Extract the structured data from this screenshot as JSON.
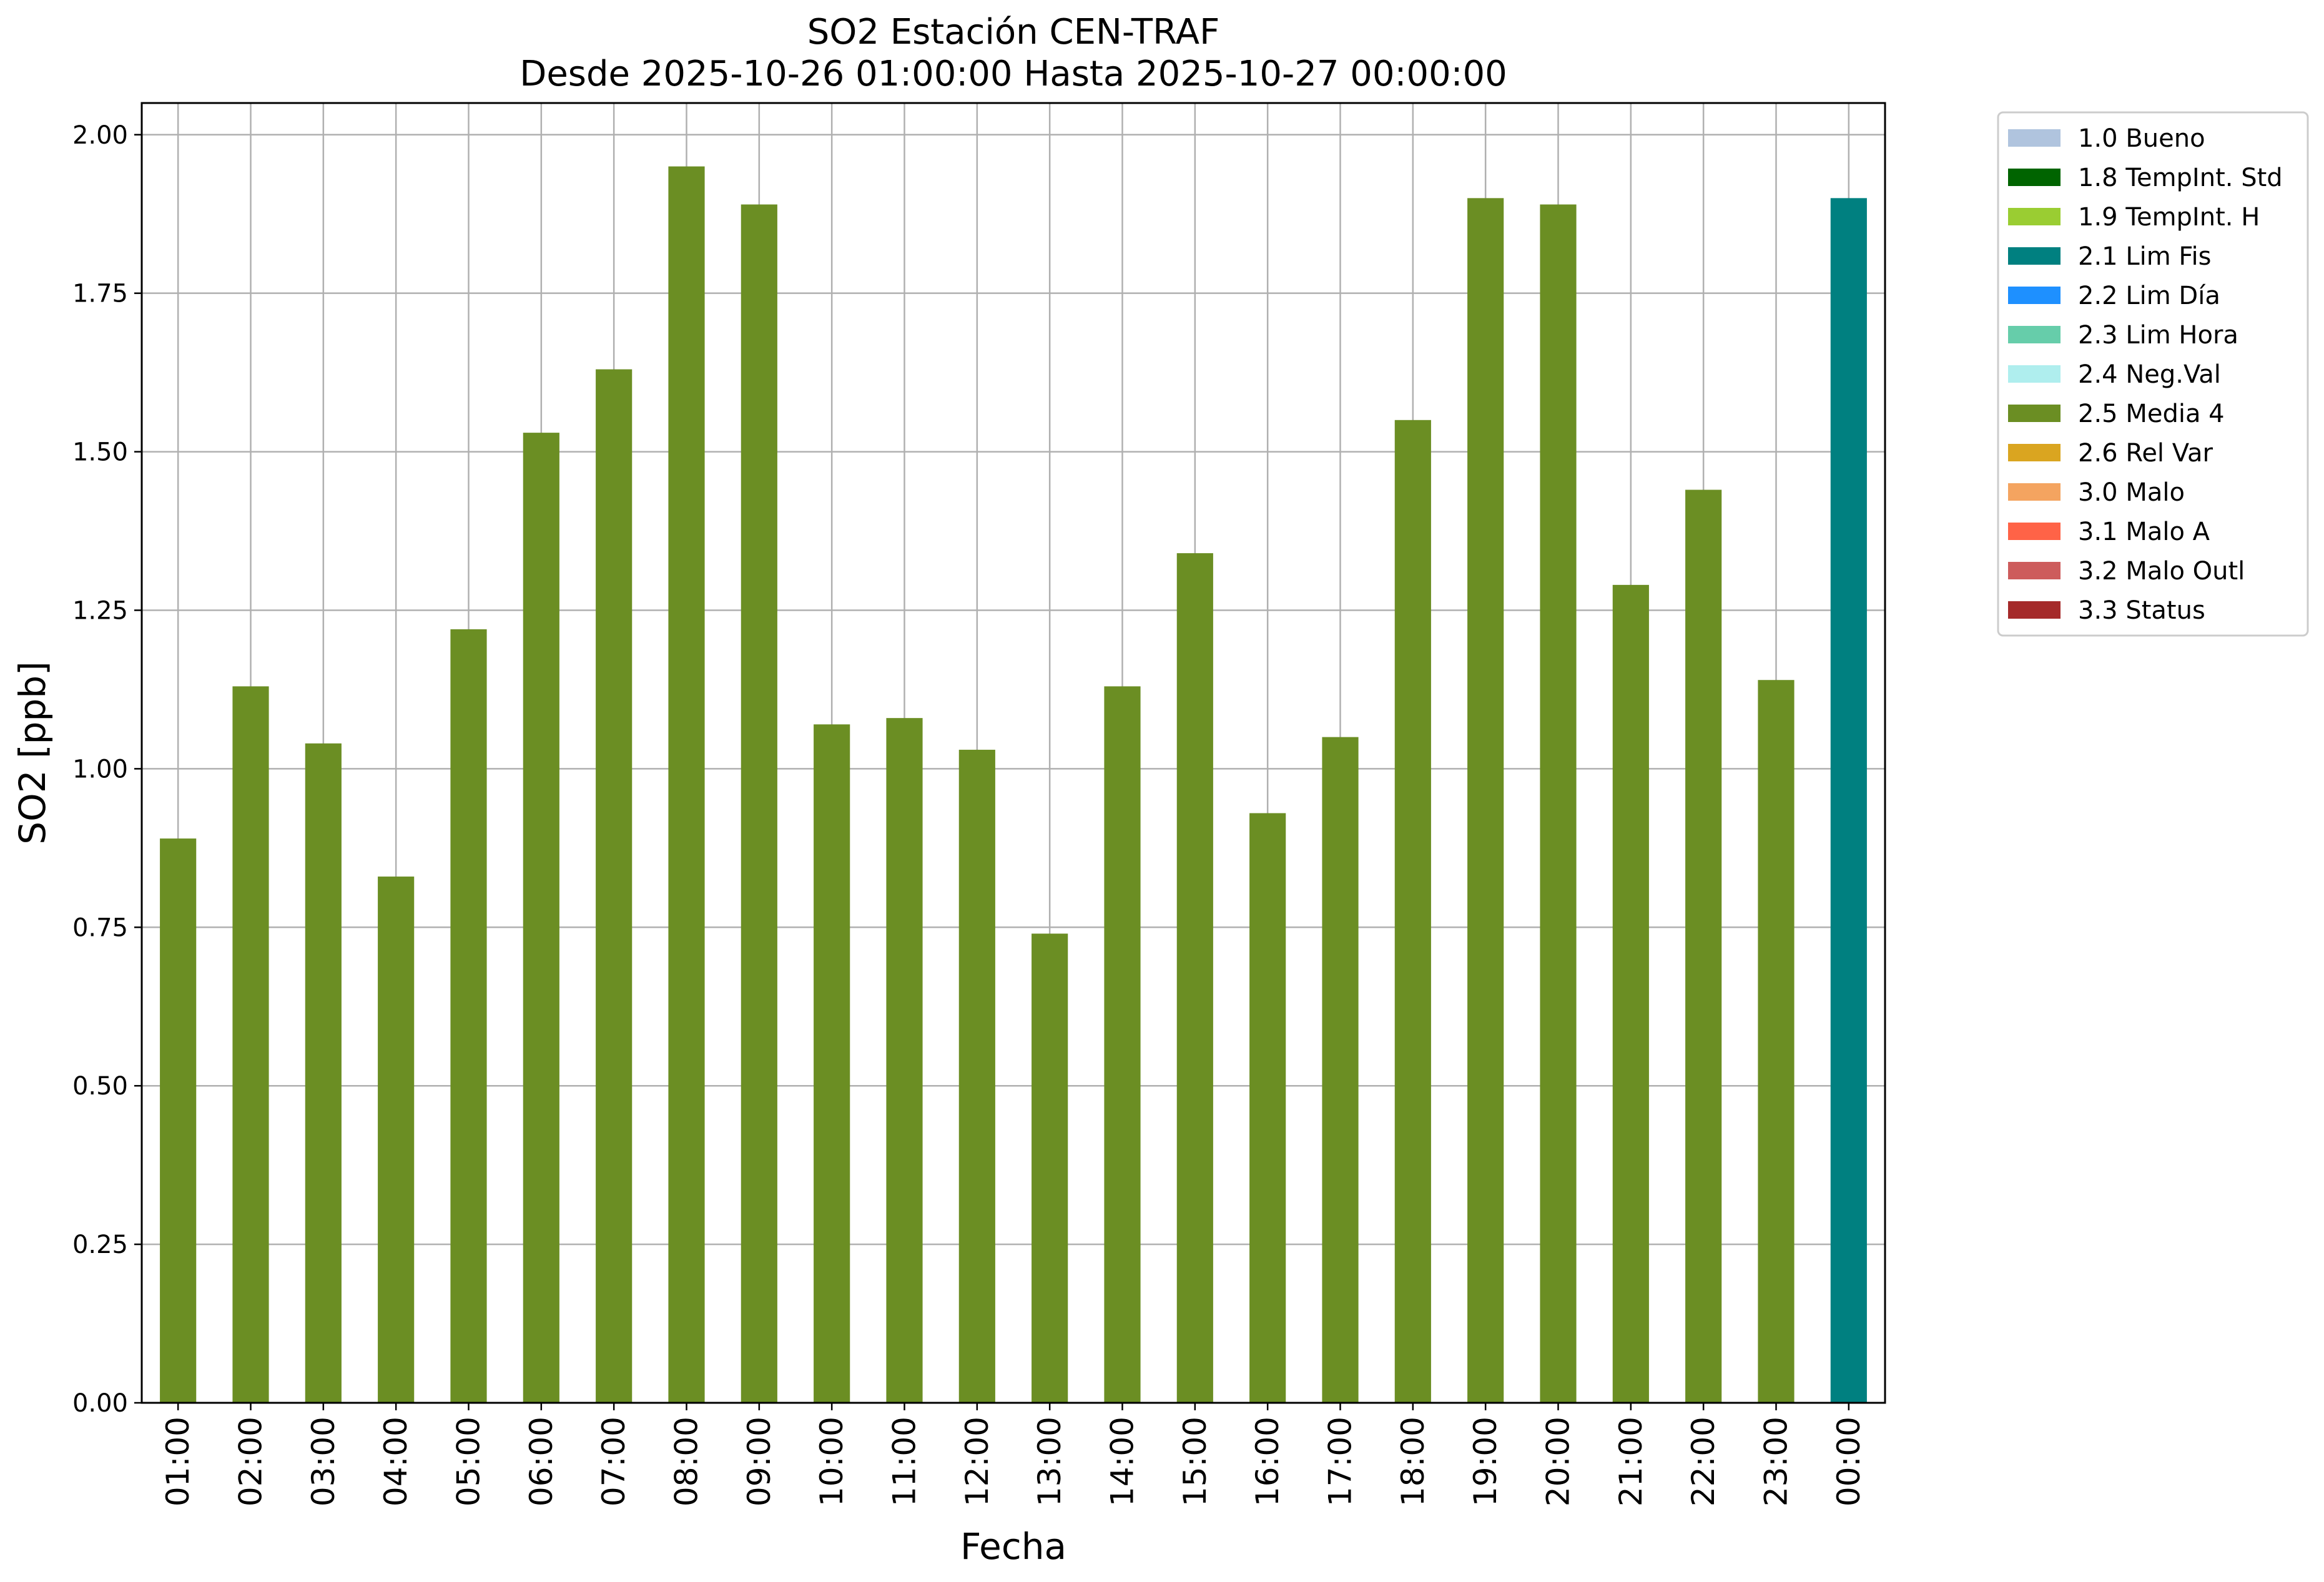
{
  "chart_data": {
    "type": "bar",
    "title": "SO2 Estación CEN-TRAF",
    "subtitle": "Desde 2025-10-26 01:00:00 Hasta 2025-10-27 00:00:00",
    "xlabel": "Fecha",
    "ylabel": "SO2 [ppb]",
    "ylim": [
      0,
      2.05
    ],
    "yticks": [
      "0.00",
      "0.25",
      "0.50",
      "0.75",
      "1.00",
      "1.25",
      "1.50",
      "1.75",
      "2.00"
    ],
    "grid": true,
    "legend_position": "outside-top-right",
    "categories": [
      "01:00",
      "02:00",
      "03:00",
      "04:00",
      "05:00",
      "06:00",
      "07:00",
      "08:00",
      "09:00",
      "10:00",
      "11:00",
      "12:00",
      "13:00",
      "14:00",
      "15:00",
      "16:00",
      "17:00",
      "18:00",
      "19:00",
      "20:00",
      "21:00",
      "22:00",
      "23:00",
      "00:00"
    ],
    "values": [
      0.89,
      1.13,
      1.04,
      0.83,
      1.22,
      1.53,
      1.63,
      1.95,
      1.89,
      1.07,
      1.08,
      1.03,
      0.74,
      1.13,
      1.34,
      0.93,
      1.05,
      1.55,
      1.9,
      1.89,
      1.29,
      1.44,
      1.14,
      1.9
    ],
    "flags": [
      "2.5 Media 4",
      "2.5 Media 4",
      "2.5 Media 4",
      "2.5 Media 4",
      "2.5 Media 4",
      "2.5 Media 4",
      "2.5 Media 4",
      "2.5 Media 4",
      "2.5 Media 4",
      "2.5 Media 4",
      "2.5 Media 4",
      "2.5 Media 4",
      "2.5 Media 4",
      "2.5 Media 4",
      "2.5 Media 4",
      "2.5 Media 4",
      "2.5 Media 4",
      "2.5 Media 4",
      "2.5 Media 4",
      "2.5 Media 4",
      "2.5 Media 4",
      "2.5 Media 4",
      "2.5 Media 4",
      "2.1 Lim Fis"
    ],
    "legend": [
      {
        "label": "1.0 Bueno",
        "color": "#b0c4de"
      },
      {
        "label": "1.8 TempInt. Std",
        "color": "#006400"
      },
      {
        "label": "1.9 TempInt. H",
        "color": "#9acd32"
      },
      {
        "label": "2.1 Lim Fis",
        "color": "#008080"
      },
      {
        "label": "2.2 Lim Día",
        "color": "#1e90ff"
      },
      {
        "label": "2.3 Lim Hora",
        "color": "#66cdaa"
      },
      {
        "label": "2.4 Neg.Val",
        "color": "#afeeee"
      },
      {
        "label": "2.5 Media 4",
        "color": "#6b8e23"
      },
      {
        "label": "2.6 Rel Var",
        "color": "#daa520"
      },
      {
        "label": "3.0 Malo",
        "color": "#f4a460"
      },
      {
        "label": "3.1 Malo A",
        "color": "#ff6347"
      },
      {
        "label": "3.2 Malo Outl",
        "color": "#cd5c5c"
      },
      {
        "label": "3.3 Status",
        "color": "#a52a2a"
      }
    ]
  }
}
